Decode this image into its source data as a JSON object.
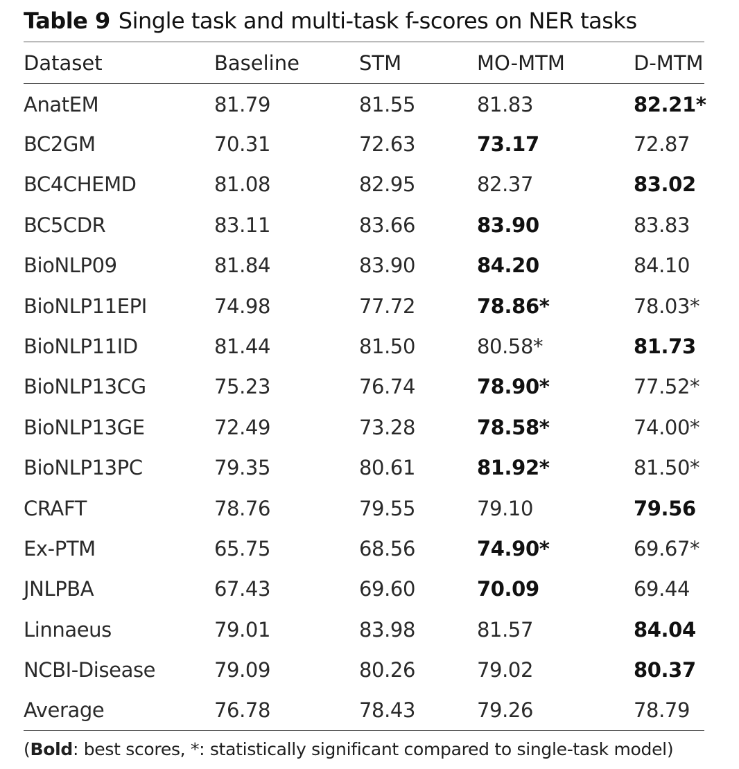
{
  "table": {
    "label": "Table 9",
    "title": "Single task and multi-task f-scores on NER tasks",
    "columns": [
      "Dataset",
      "Baseline",
      "STM",
      "MO-MTM",
      "D-MTM"
    ],
    "rows": [
      {
        "cells": [
          "AnatEM",
          "81.79",
          "81.55",
          "81.83",
          "82.21*"
        ],
        "bold": [
          4
        ]
      },
      {
        "cells": [
          "BC2GM",
          "70.31",
          "72.63",
          "73.17",
          "72.87"
        ],
        "bold": [
          3
        ]
      },
      {
        "cells": [
          "BC4CHEMD",
          "81.08",
          "82.95",
          "82.37",
          "83.02"
        ],
        "bold": [
          4
        ]
      },
      {
        "cells": [
          "BC5CDR",
          "83.11",
          "83.66",
          "83.90",
          "83.83"
        ],
        "bold": [
          3
        ]
      },
      {
        "cells": [
          "BioNLP09",
          "81.84",
          "83.90",
          "84.20",
          "84.10"
        ],
        "bold": [
          3
        ]
      },
      {
        "cells": [
          "BioNLP11EPI",
          "74.98",
          "77.72",
          "78.86*",
          "78.03*"
        ],
        "bold": [
          3
        ]
      },
      {
        "cells": [
          "BioNLP11ID",
          "81.44",
          "81.50",
          "80.58*",
          "81.73"
        ],
        "bold": [
          4
        ]
      },
      {
        "cells": [
          "BioNLP13CG",
          "75.23",
          "76.74",
          "78.90*",
          "77.52*"
        ],
        "bold": [
          3
        ]
      },
      {
        "cells": [
          "BioNLP13GE",
          "72.49",
          "73.28",
          "78.58*",
          "74.00*"
        ],
        "bold": [
          3
        ]
      },
      {
        "cells": [
          "BioNLP13PC",
          "79.35",
          "80.61",
          "81.92*",
          "81.50*"
        ],
        "bold": [
          3
        ]
      },
      {
        "cells": [
          "CRAFT",
          "78.76",
          "79.55",
          "79.10",
          "79.56"
        ],
        "bold": [
          4
        ]
      },
      {
        "cells": [
          "Ex-PTM",
          "65.75",
          "68.56",
          "74.90*",
          "69.67*"
        ],
        "bold": [
          3
        ]
      },
      {
        "cells": [
          "JNLPBA",
          "67.43",
          "69.60",
          "70.09",
          "69.44"
        ],
        "bold": [
          3
        ]
      },
      {
        "cells": [
          "Linnaeus",
          "79.01",
          "83.98",
          "81.57",
          "84.04"
        ],
        "bold": [
          4
        ]
      },
      {
        "cells": [
          "NCBI-Disease",
          "79.09",
          "80.26",
          "79.02",
          "80.37"
        ],
        "bold": [
          4
        ]
      },
      {
        "cells": [
          "Average",
          "76.78",
          "78.43",
          "79.26",
          "78.79"
        ],
        "bold": []
      }
    ],
    "footnote": {
      "open": "(",
      "bold_word": "Bold",
      "rest": ": best scores, *: statistically significant compared to single-task model)"
    }
  }
}
